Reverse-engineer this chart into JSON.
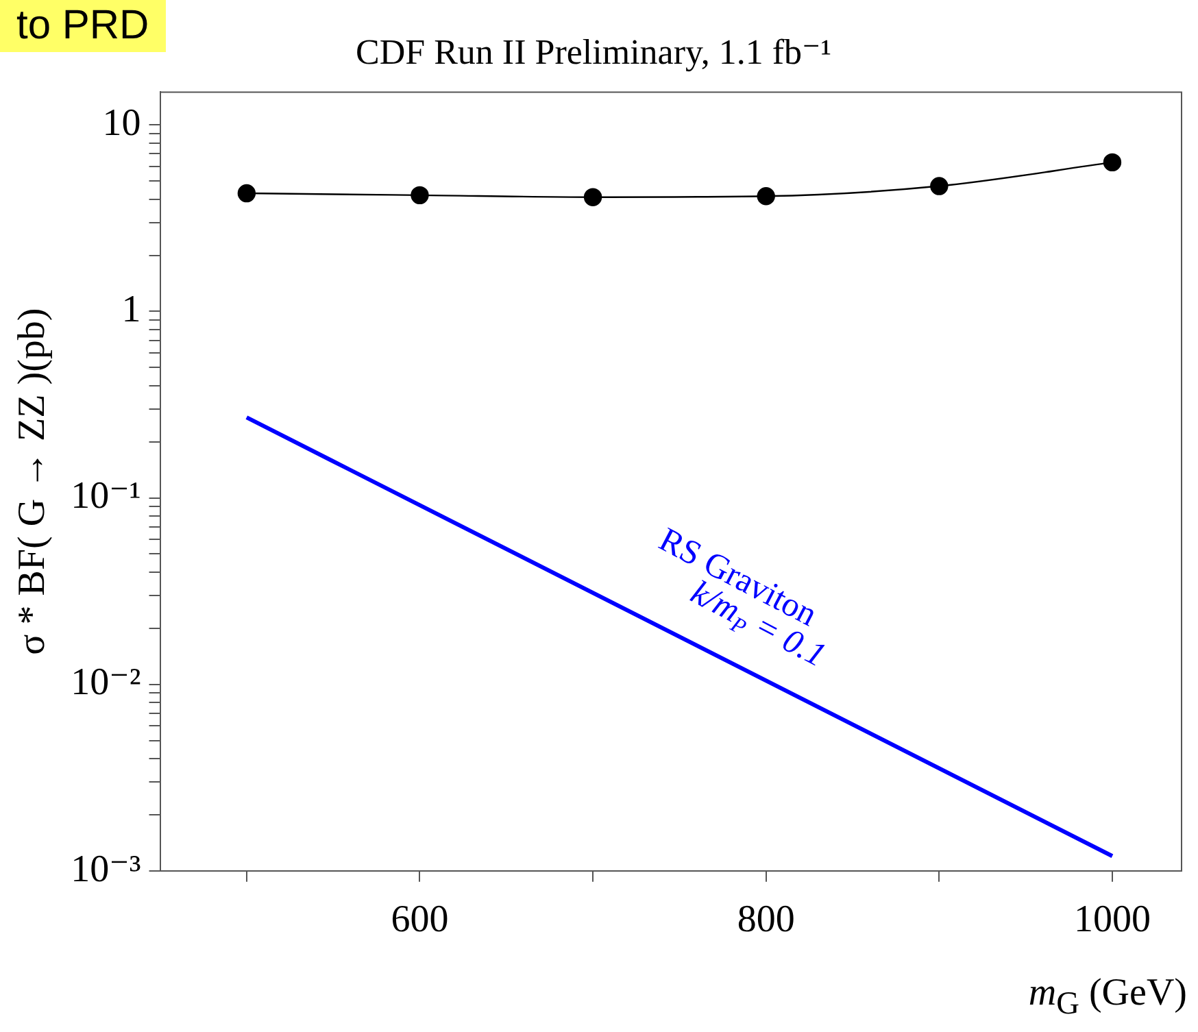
{
  "chart_data": {
    "type": "line",
    "title": "CDF Run II Preliminary, 1.1 fb⁻¹",
    "xlabel": "m$_{G}$ (GeV)",
    "ylabel": "σ * BF( G → ZZ )(pb)",
    "x": [
      500,
      600,
      700,
      800,
      900,
      1000
    ],
    "series": [
      {
        "color": "#000000",
        "marker": "circle",
        "values": [
          4.3,
          4.2,
          4.1,
          4.15,
          4.7,
          6.3
        ]
      },
      {
        "color": "#0000ff",
        "marker": "none",
        "x": [
          500,
          1000
        ],
        "values": [
          0.27,
          0.0012
        ]
      }
    ],
    "log": "y",
    "grid": false,
    "legend": false,
    "xlim": [
      450,
      1040
    ],
    "xticks": [
      {
        "value": 500,
        "label": null
      },
      600,
      {
        "value": 700,
        "label": null
      },
      800,
      {
        "value": 900,
        "label": null
      },
      1000
    ],
    "ylim": [
      0.001,
      15
    ],
    "yticks": [
      {
        "value": 0.001,
        "label": "10⁻³"
      },
      {
        "value": 0.002,
        "label": null
      },
      {
        "value": 0.003,
        "label": null
      },
      {
        "value": 0.004,
        "label": null
      },
      {
        "value": 0.005,
        "label": null
      },
      {
        "value": 0.006,
        "label": null
      },
      {
        "value": 0.007,
        "label": null
      },
      {
        "value": 0.008,
        "label": null
      },
      {
        "value": 0.009,
        "label": null
      },
      {
        "value": 0.01,
        "label": "10⁻²"
      },
      {
        "value": 0.02,
        "label": null
      },
      {
        "value": 0.03,
        "label": null
      },
      {
        "value": 0.04,
        "label": null
      },
      {
        "value": 0.05,
        "label": null
      },
      {
        "value": 0.06,
        "label": null
      },
      {
        "value": 0.07,
        "label": null
      },
      {
        "value": 0.08,
        "label": null
      },
      {
        "value": 0.09,
        "label": null
      },
      {
        "value": 0.1,
        "label": "10⁻¹"
      },
      {
        "value": 0.2,
        "label": null
      },
      {
        "value": 0.3,
        "label": null
      },
      {
        "value": 0.4,
        "label": null
      },
      {
        "value": 0.5,
        "label": null
      },
      {
        "value": 0.6,
        "label": null
      },
      {
        "value": 0.7,
        "label": null
      },
      {
        "value": 0.8,
        "label": null
      },
      {
        "value": 0.9,
        "label": null
      },
      {
        "value": 1,
        "label": "1"
      },
      {
        "value": 2,
        "label": null
      },
      {
        "value": 3,
        "label": null
      },
      {
        "value": 4,
        "label": null
      },
      {
        "value": 5,
        "label": null
      },
      {
        "value": 6,
        "label": null
      },
      {
        "value": 7,
        "label": null
      },
      {
        "value": 8,
        "label": null
      },
      {
        "value": 9,
        "label": null
      },
      {
        "value": 10,
        "label": "10"
      }
    ],
    "annotations": [
      "RS Graviton",
      "k/m$_{P}$ = 0.1",
      "to PRD"
    ]
  }
}
